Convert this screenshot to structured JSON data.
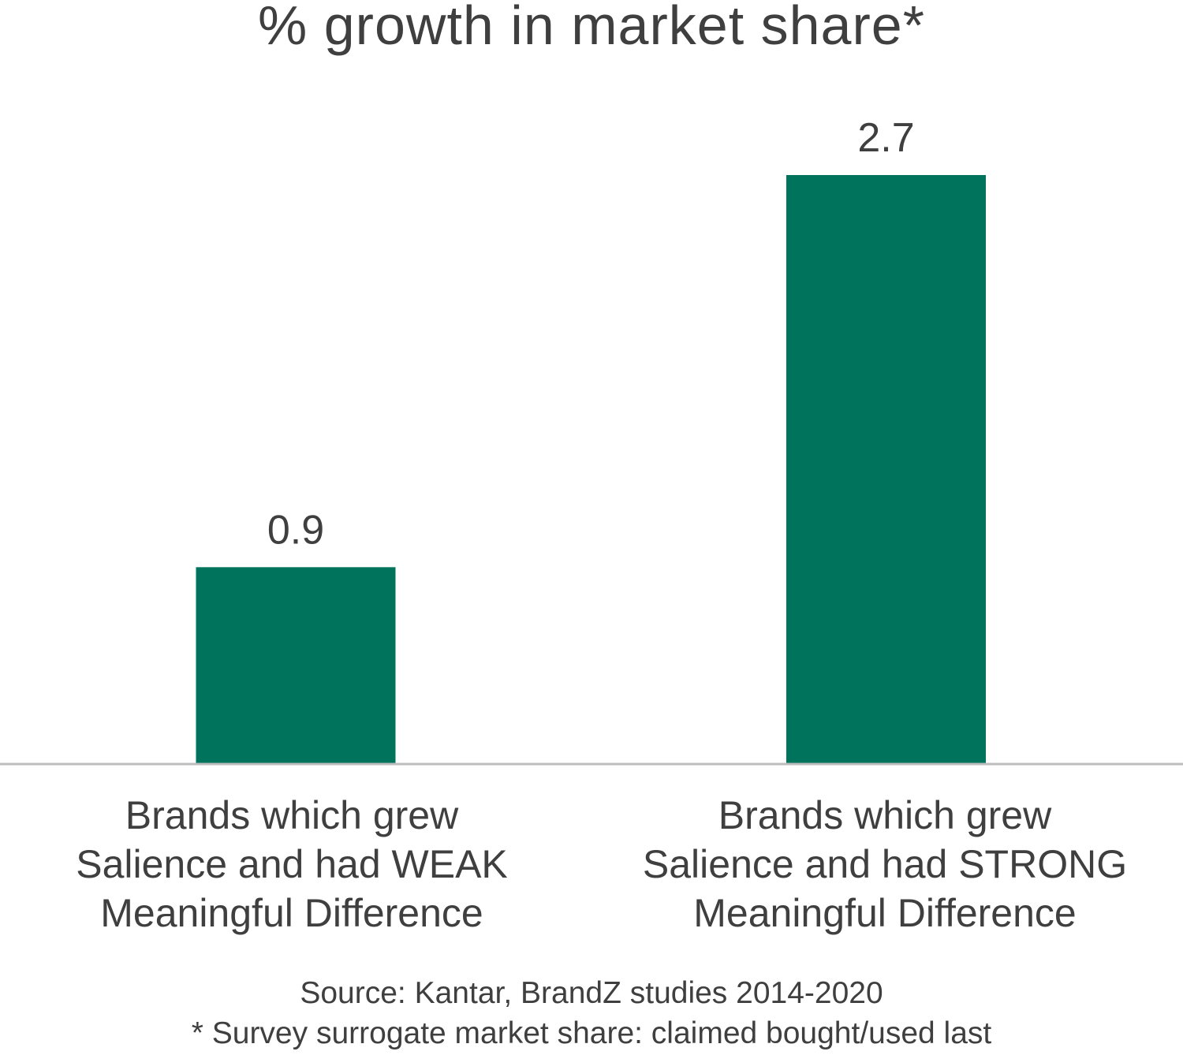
{
  "chart_data": {
    "type": "bar",
    "title": "% growth in market share*",
    "categories": [
      [
        "Brands which grew",
        "Salience and had WEAK",
        "Meaningful Difference"
      ],
      [
        "Brands which grew",
        "Salience and had STRONG",
        "Meaningful Difference"
      ]
    ],
    "values": [
      0.9,
      2.7
    ],
    "data_labels": [
      "0.9",
      "2.7"
    ],
    "ylim": [
      0,
      2.7
    ],
    "grid": false,
    "legend": "none",
    "bar_color": "#00735C",
    "axis_color": "#BDBDBD"
  },
  "footnotes": {
    "source": "Source: Kantar, BrandZ studies 2014-2020",
    "note": "* Survey surrogate market share: claimed bought/used last"
  }
}
